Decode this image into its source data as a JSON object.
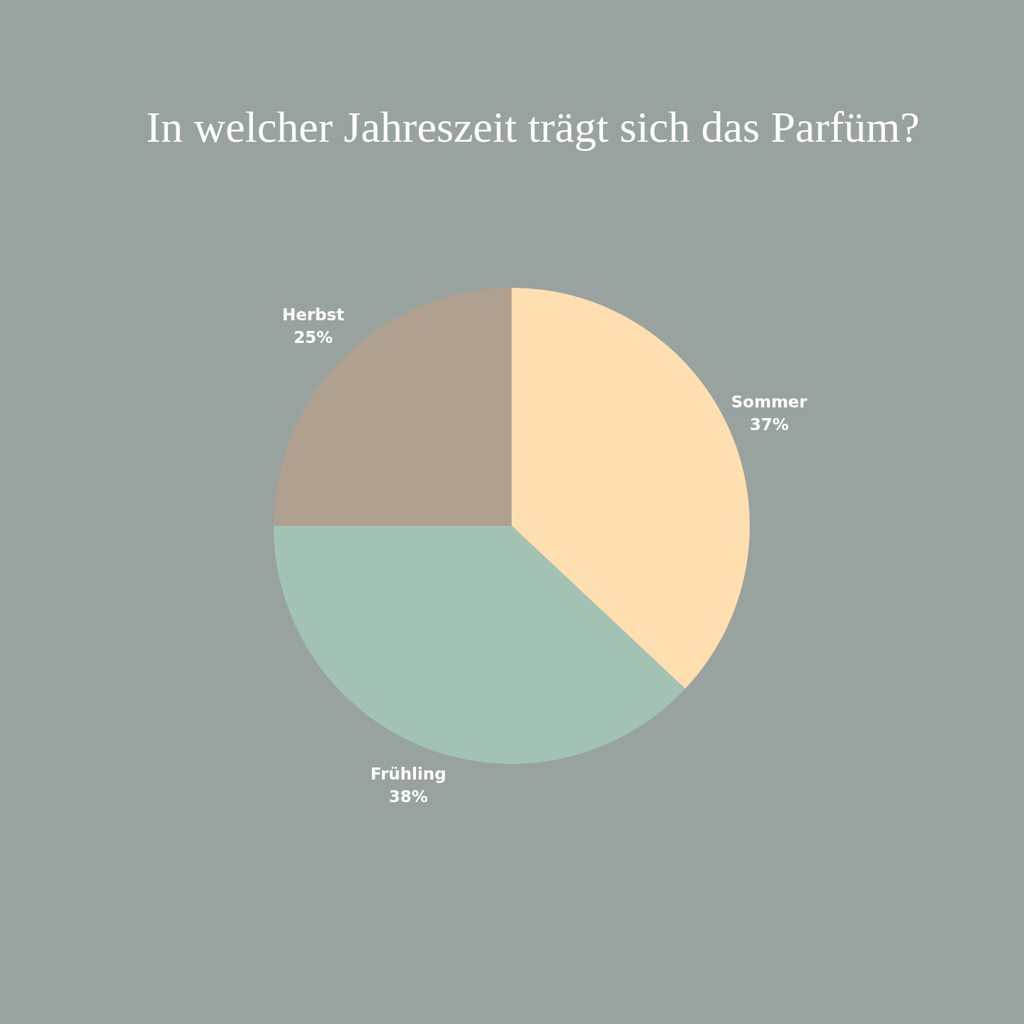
{
  "chart_data": {
    "type": "pie",
    "title": "In welcher Jahreszeit trägt sich das Parfüm?",
    "categories": [
      "Sommer",
      "Frühling",
      "Herbst"
    ],
    "values": [
      37,
      38,
      25
    ],
    "colors": [
      "#ffdfb0",
      "#a2c2b4",
      "#afa090"
    ],
    "value_labels": [
      "37%",
      "38%",
      "25%"
    ]
  }
}
